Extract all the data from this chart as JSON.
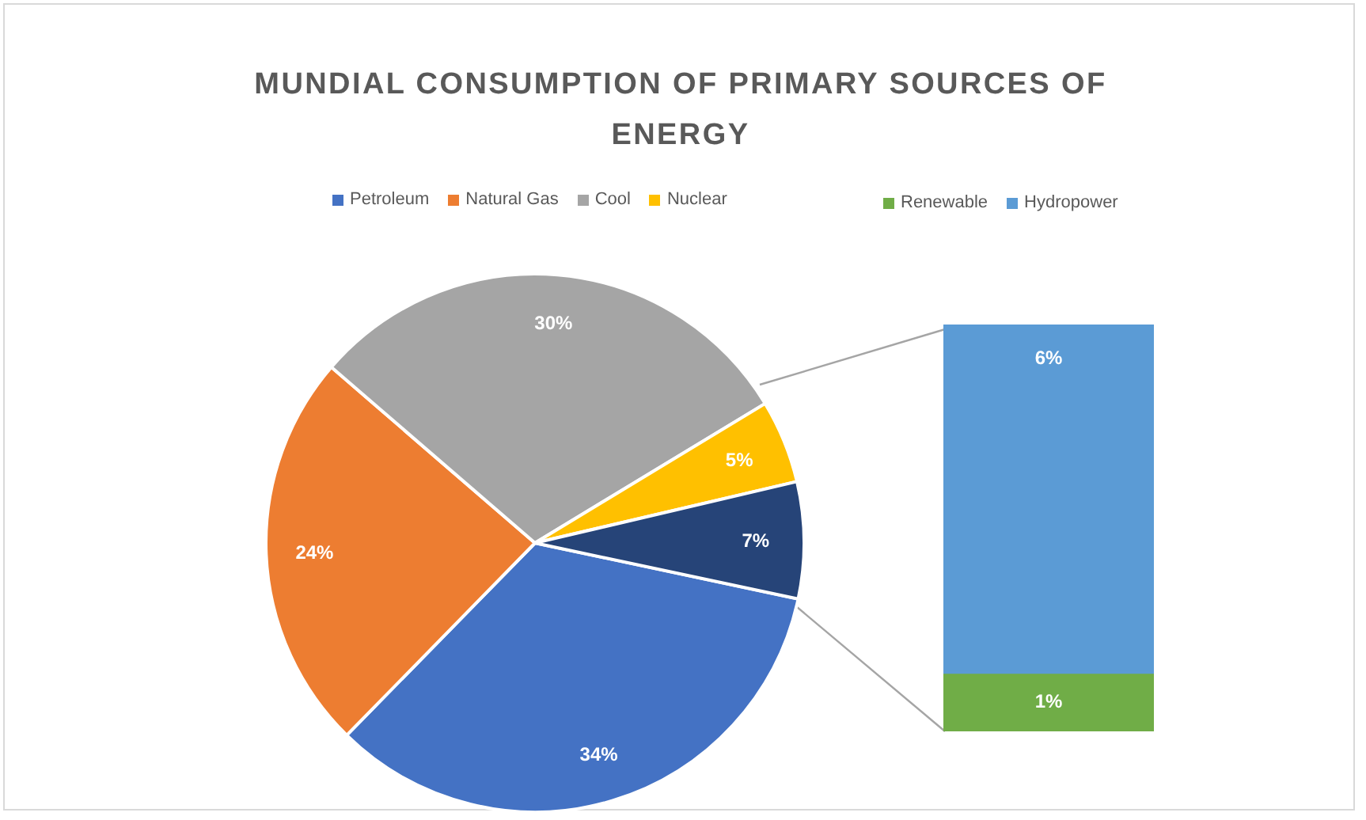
{
  "chart_data": [
    {
      "type": "pie",
      "title": "MUNDIAL CONSUMPTION OF PRIMARY SOURCES OF ENERGY",
      "categories": [
        "Petroleum",
        "Natural Gas",
        "Cool",
        "Nuclear",
        null
      ],
      "values": [
        34,
        24,
        30,
        5,
        7
      ],
      "colors": [
        "#4472c4",
        "#ed7d31",
        "#a5a5a5",
        "#ffc000",
        "#264478"
      ],
      "value_labels": [
        "34%",
        "24%",
        "30%",
        "5%",
        "7%"
      ],
      "legend": "top"
    },
    {
      "type": "bar",
      "stacked": true,
      "categories": [
        null
      ],
      "series": [
        {
          "name": "Renewable",
          "color": "#70ad47",
          "values": [
            1
          ],
          "value_labels": [
            "1%"
          ]
        },
        {
          "name": "Hydropower",
          "color": "#5b9bd5",
          "values": [
            6
          ],
          "value_labels": [
            "6%"
          ]
        }
      ],
      "legend": "top"
    }
  ]
}
